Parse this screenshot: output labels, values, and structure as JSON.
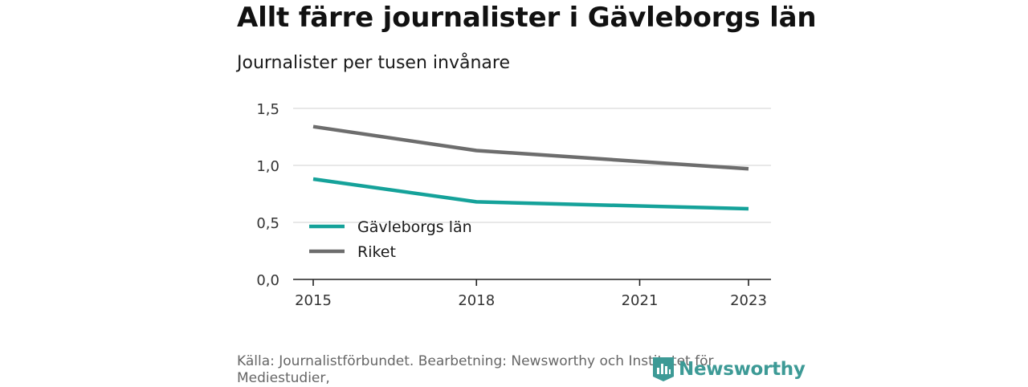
{
  "title": "Allt färre journalister i Gävleborgs län",
  "subtitle": "Journalister per tusen invånare",
  "source": "Källa: Journalistförbundet. Bearbetning: Newsworthy och Institutet för Mediestudier,",
  "brand": {
    "name": "Newsworthy",
    "icon": "bar-chart-logo-icon",
    "color": "#3d9a96"
  },
  "chart_data": {
    "type": "line",
    "title": "Allt färre journalister i Gävleborgs län",
    "subtitle": "Journalister per tusen invånare",
    "xlabel": "",
    "ylabel": "",
    "x_ticks": [
      2015,
      2018,
      2021,
      2023
    ],
    "y_ticks": [
      "0,0",
      "0,5",
      "1,0",
      "1,5"
    ],
    "y_tick_values": [
      0,
      0.5,
      1.0,
      1.5
    ],
    "xlim": [
      2015,
      2023
    ],
    "ylim": [
      0,
      1.5
    ],
    "grid": "horizontal",
    "legend_placement": "bottom-left",
    "series": [
      {
        "name": "Gävleborgs län",
        "color": "#15a29a",
        "x": [
          2015,
          2018,
          2023
        ],
        "values": [
          0.88,
          0.68,
          0.62
        ]
      },
      {
        "name": "Riket",
        "color": "#6d6d6d",
        "x": [
          2015,
          2018,
          2023
        ],
        "values": [
          1.34,
          1.13,
          0.97
        ]
      }
    ]
  }
}
